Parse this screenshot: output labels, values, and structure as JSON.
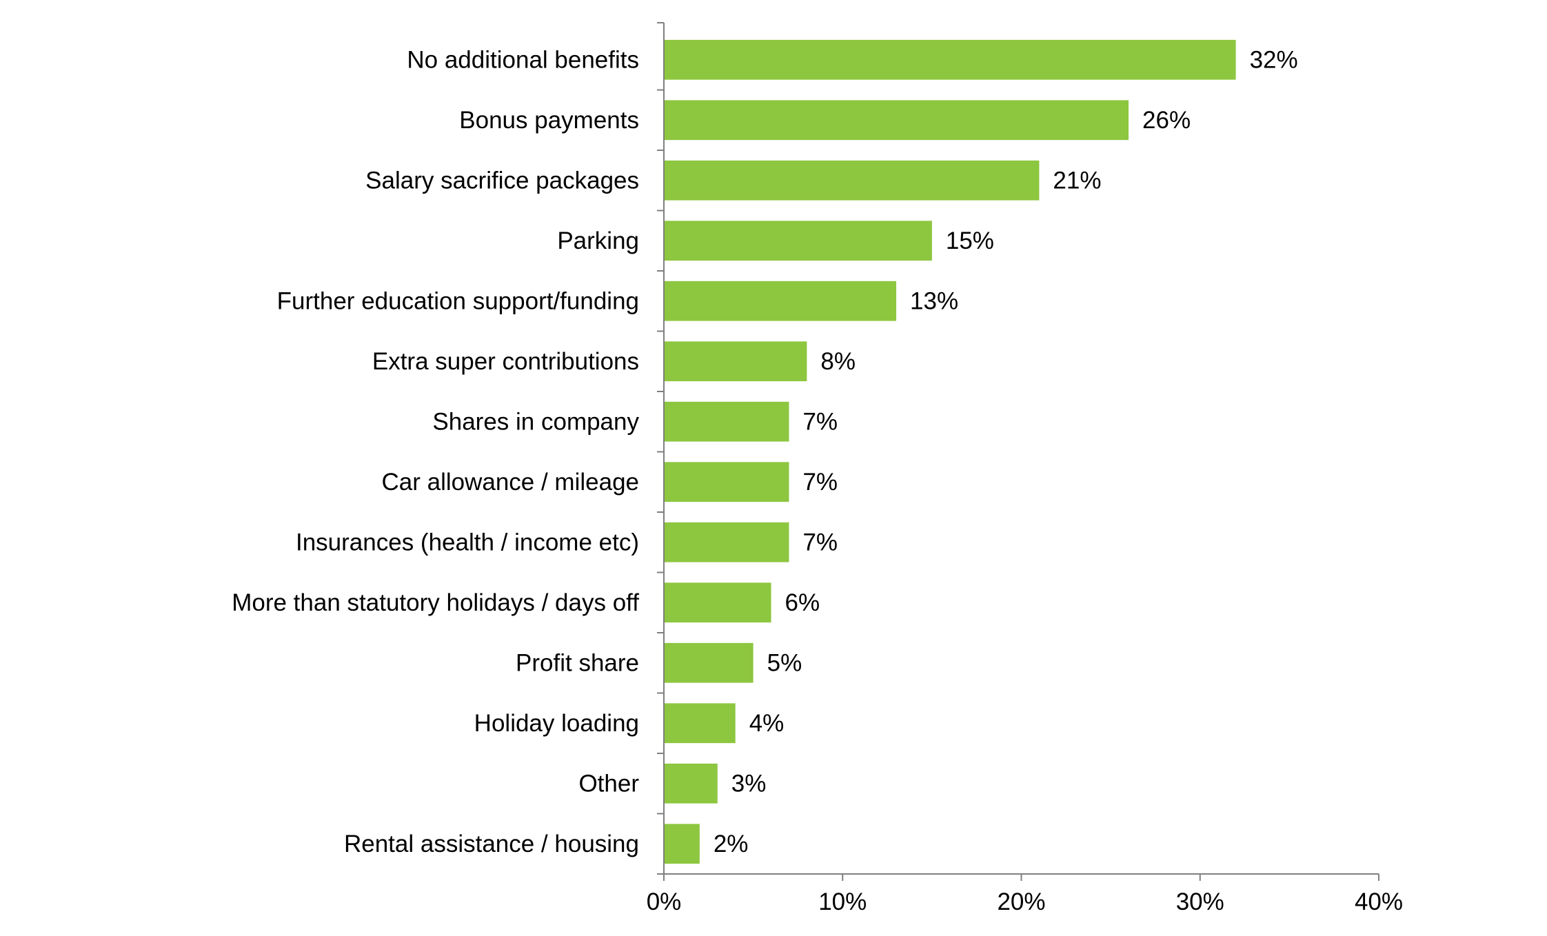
{
  "chart_data": {
    "type": "bar",
    "orientation": "horizontal",
    "categories": [
      "No additional benefits",
      "Bonus payments",
      "Salary sacrifice packages",
      "Parking",
      "Further education support/funding",
      "Extra super contributions",
      "Shares in company",
      "Car allowance / mileage",
      "Insurances (health / income etc)",
      "More than statutory holidays / days off",
      "Profit share",
      "Holiday loading",
      "Other",
      "Rental assistance / housing"
    ],
    "values": [
      32,
      26,
      21,
      15,
      13,
      8,
      7,
      7,
      7,
      6,
      5,
      4,
      3,
      2
    ],
    "value_labels": [
      "32%",
      "26%",
      "21%",
      "15%",
      "13%",
      "8%",
      "7%",
      "7%",
      "7%",
      "6%",
      "5%",
      "4%",
      "3%",
      "2%"
    ],
    "xlim": [
      0,
      40
    ],
    "x_ticks": [
      0,
      10,
      20,
      30,
      40
    ],
    "x_tick_labels": [
      "0%",
      "10%",
      "20%",
      "30%",
      "40%"
    ],
    "bar_color": "#8dc63f",
    "axis_color": "#7f7f7f",
    "grid": false,
    "legend": "none"
  }
}
